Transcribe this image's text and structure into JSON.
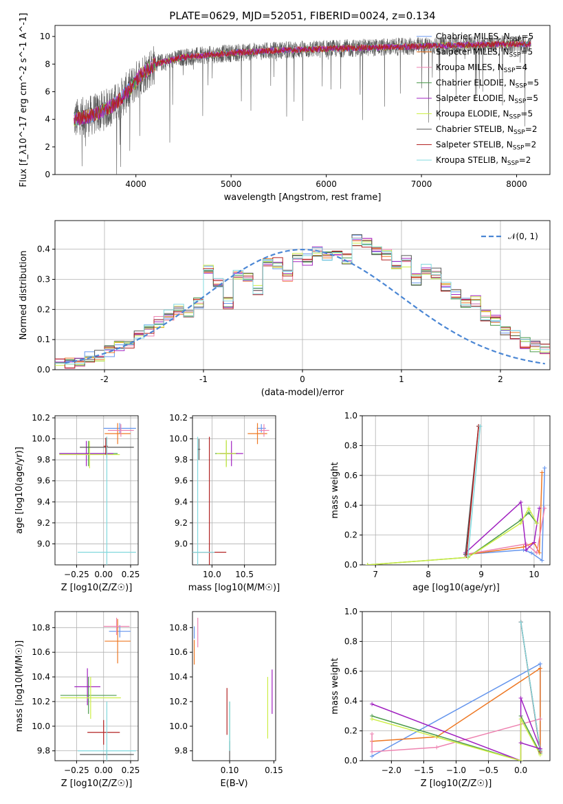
{
  "figure": {
    "title": "PLATE=0629, MJD=52051, FIBERID=0024, z=0.134"
  },
  "models": [
    {
      "name": "Chabrier MILES",
      "nssp": "5",
      "color": "#6495ed"
    },
    {
      "name": "Salpeter MILES",
      "nssp": "5",
      "color": "#ee7722"
    },
    {
      "name": "Kroupa MILES",
      "nssp": "4",
      "color": "#ee82b0"
    },
    {
      "name": "Chabrier ELODIE",
      "nssp": "5",
      "color": "#4b9a4b"
    },
    {
      "name": "Salpeter ELODIE",
      "nssp": "5",
      "color": "#a020c0"
    },
    {
      "name": "Kroupa ELODIE",
      "nssp": "5",
      "color": "#ccee44"
    },
    {
      "name": "Chabrier STELIB",
      "nssp": "2",
      "color": "#555555"
    },
    {
      "name": "Salpeter STELIB",
      "nssp": "2",
      "color": "#b22222"
    },
    {
      "name": "Kroupa STELIB",
      "nssp": "2",
      "color": "#80d8dd"
    }
  ],
  "chart_data": [
    {
      "id": "spectrum",
      "type": "line",
      "xlabel": "wavelength [Angstrom, rest frame]",
      "ylabel": "Flux [f_λ10^-17 erg cm^-2 s^-1 A^-1]",
      "xlim": [
        3150,
        8350
      ],
      "ylim": [
        0,
        10.8
      ],
      "xticks": [
        4000,
        5000,
        6000,
        7000,
        8000
      ],
      "yticks": [
        0,
        2,
        4,
        6,
        8,
        10
      ],
      "grid": false,
      "legend": "top-right",
      "continuum": [
        [
          3350,
          4.0
        ],
        [
          3500,
          4.2
        ],
        [
          3650,
          4.6
        ],
        [
          3800,
          5.2
        ],
        [
          3950,
          6.3
        ],
        [
          4050,
          7.2
        ],
        [
          4200,
          8.0
        ],
        [
          4500,
          8.5
        ],
        [
          5000,
          8.8
        ],
        [
          5500,
          9.0
        ],
        [
          6000,
          9.1
        ],
        [
          6500,
          9.2
        ],
        [
          7000,
          9.3
        ],
        [
          7500,
          9.4
        ],
        [
          8000,
          9.45
        ],
        [
          8150,
          9.45
        ]
      ],
      "data_range": [
        3350,
        8150
      ]
    },
    {
      "id": "residuals",
      "type": "histogram",
      "xlabel": "(data-model)/error",
      "ylabel": "Normed distribution",
      "xlim": [
        -2.5,
        2.5
      ],
      "ylim": [
        0,
        0.495
      ],
      "xticks": [
        -2,
        -1,
        0,
        1,
        2
      ],
      "yticks": [
        0.0,
        0.1,
        0.2,
        0.3,
        0.4
      ],
      "grid": true,
      "legend": "top-right",
      "legend_label": "𝒩(0, 1)",
      "bin_width": 0.1,
      "bins_start": -2.5,
      "values": [
        0.027,
        0.022,
        0.028,
        0.042,
        0.048,
        0.06,
        0.082,
        0.09,
        0.11,
        0.13,
        0.158,
        0.18,
        0.2,
        0.19,
        0.22,
        0.33,
        0.29,
        0.222,
        0.32,
        0.305,
        0.262,
        0.35,
        0.352,
        0.312,
        0.372,
        0.366,
        0.39,
        0.38,
        0.396,
        0.365,
        0.43,
        0.418,
        0.4,
        0.382,
        0.345,
        0.36,
        0.3,
        0.335,
        0.32,
        0.28,
        0.253,
        0.222,
        0.226,
        0.18,
        0.165,
        0.13,
        0.11,
        0.088,
        0.078,
        0.065,
        0.048,
        0.035,
        0.03
      ]
    },
    {
      "id": "age_vs_Z",
      "type": "errorbar",
      "xlabel": "Z [log10(Z/Z☉)]",
      "ylabel": "age  [log10(age/yr)]",
      "xlim": [
        -0.45,
        0.32
      ],
      "ylim": [
        8.8,
        10.22
      ],
      "xticks": [
        -0.25,
        0.0,
        0.25
      ],
      "xticklabels": [
        "−0.25",
        "0.00",
        "0.25"
      ],
      "yticks": [
        9.0,
        9.2,
        9.4,
        9.6,
        9.8,
        10.0,
        10.2
      ],
      "grid": true,
      "points": [
        {
          "model": 0,
          "x": 0.15,
          "xerr": 0.15,
          "y": 10.1,
          "yerr": 0.05
        },
        {
          "model": 1,
          "x": 0.13,
          "xerr": 0.12,
          "y": 10.05,
          "yerr": 0.1
        },
        {
          "model": 2,
          "x": 0.16,
          "xerr": 0.12,
          "y": 10.08,
          "yerr": 0.06
        },
        {
          "model": 3,
          "x": -0.14,
          "xerr": 0.27,
          "y": 9.86,
          "yerr": 0.12
        },
        {
          "model": 4,
          "x": -0.16,
          "xerr": 0.25,
          "y": 9.86,
          "yerr": 0.12
        },
        {
          "model": 5,
          "x": -0.13,
          "xerr": 0.28,
          "y": 9.85,
          "yerr": 0.13
        },
        {
          "model": 6,
          "x": 0.03,
          "xerr": 0.25,
          "y": 9.92,
          "yerr": 0.1
        },
        {
          "model": 7,
          "x": 0.02,
          "xerr": 0.02,
          "y": 9.93,
          "yerr": 0.08
        },
        {
          "model": 8,
          "x": 0.03,
          "xerr": 0.27,
          "y": 8.92,
          "yerr": 1.1
        }
      ]
    },
    {
      "id": "age_vs_mass",
      "type": "errorbar",
      "xlabel": "mass [log10(M/M☉)]",
      "ylabel": "",
      "xlim": [
        9.7,
        10.98
      ],
      "ylim": [
        8.8,
        10.22
      ],
      "xticks": [
        10.0,
        10.5
      ],
      "xticklabels": [
        "10.0",
        "10.5"
      ],
      "yticks": [
        9.0,
        9.2,
        9.4,
        9.6,
        9.8,
        10.0,
        10.2
      ],
      "grid": true,
      "points": [
        {
          "model": 0,
          "x": 10.76,
          "xerr": 0.07,
          "y": 10.1,
          "yerr": 0.04
        },
        {
          "model": 1,
          "x": 10.7,
          "xerr": 0.15,
          "y": 10.05,
          "yerr": 0.1
        },
        {
          "model": 2,
          "x": 10.8,
          "xerr": 0.08,
          "y": 10.08,
          "yerr": 0.06
        },
        {
          "model": 3,
          "x": 10.22,
          "xerr": 0.17,
          "y": 9.86,
          "yerr": 0.12
        },
        {
          "model": 4,
          "x": 10.3,
          "xerr": 0.18,
          "y": 9.86,
          "yerr": 0.12
        },
        {
          "model": 5,
          "x": 10.22,
          "xerr": 0.15,
          "y": 9.86,
          "yerr": 0.13
        },
        {
          "model": 6,
          "x": 9.8,
          "xerr": 0.02,
          "y": 9.9,
          "yerr": 0.1
        },
        {
          "model": 7,
          "x": 9.96,
          "xerr": 0.26,
          "y": 8.92,
          "yerr": 1.1
        },
        {
          "model": 8,
          "x": 9.78,
          "xerr": 0.26,
          "y": 8.92,
          "yerr": 1.1
        }
      ]
    },
    {
      "id": "weight_vs_age",
      "type": "line",
      "xlabel": "age  [log10(age/yr)]",
      "ylabel": "mass weight",
      "xlim": [
        6.75,
        10.3
      ],
      "ylim": [
        0,
        1.0
      ],
      "xticks": [
        7,
        8,
        9,
        10
      ],
      "yticks": [
        0.0,
        0.2,
        0.4,
        0.6,
        0.8,
        1.0
      ],
      "grid": true,
      "series": [
        {
          "model": 0,
          "x": [
            8.7,
            9.8,
            9.95,
            10.15,
            10.2
          ],
          "y": [
            0.07,
            0.1,
            0.08,
            0.03,
            0.65
          ]
        },
        {
          "model": 1,
          "x": [
            8.75,
            9.8,
            10.0,
            10.1,
            10.15
          ],
          "y": [
            0.07,
            0.12,
            0.15,
            0.08,
            0.62
          ]
        },
        {
          "model": 2,
          "x": [
            8.7,
            9.85,
            10.05,
            10.2
          ],
          "y": [
            0.07,
            0.14,
            0.08,
            0.38
          ]
        },
        {
          "model": 3,
          "x": [
            6.85,
            8.75,
            9.75,
            9.9,
            10.05
          ],
          "y": [
            0.0,
            0.05,
            0.3,
            0.35,
            0.28
          ]
        },
        {
          "model": 4,
          "x": [
            8.7,
            9.75,
            9.85,
            10.0,
            10.1
          ],
          "y": [
            0.08,
            0.42,
            0.1,
            0.15,
            0.38
          ]
        },
        {
          "model": 5,
          "x": [
            6.85,
            8.75,
            9.75,
            9.9,
            10.05
          ],
          "y": [
            0.0,
            0.05,
            0.28,
            0.38,
            0.28
          ]
        },
        {
          "model": 6,
          "x": [
            8.7,
            8.95
          ],
          "y": [
            0.07,
            0.93
          ]
        },
        {
          "model": 7,
          "x": [
            8.72,
            8.95
          ],
          "y": [
            0.06,
            0.93
          ]
        },
        {
          "model": 8,
          "x": [
            8.75,
            8.98
          ],
          "y": [
            0.06,
            0.93
          ]
        }
      ]
    },
    {
      "id": "mass_vs_Z",
      "type": "errorbar",
      "xlabel": "Z [log10(Z/Z☉)]",
      "ylabel": "mass [log10(M/M☉)]",
      "xlim": [
        -0.45,
        0.32
      ],
      "ylim": [
        9.72,
        10.93
      ],
      "xticks": [
        -0.25,
        0.0,
        0.25
      ],
      "xticklabels": [
        "−0.25",
        "0.00",
        "0.25"
      ],
      "yticks": [
        9.8,
        10.0,
        10.2,
        10.4,
        10.6,
        10.8
      ],
      "grid": true,
      "points": [
        {
          "model": 0,
          "x": 0.15,
          "xerr": 0.1,
          "y": 10.77,
          "yerr": 0.05
        },
        {
          "model": 1,
          "x": 0.13,
          "xerr": 0.12,
          "y": 10.69,
          "yerr": 0.18
        },
        {
          "model": 2,
          "x": 0.12,
          "xerr": 0.12,
          "y": 10.81,
          "yerr": 0.07
        },
        {
          "model": 3,
          "x": -0.14,
          "xerr": 0.26,
          "y": 10.25,
          "yerr": 0.15
        },
        {
          "model": 4,
          "x": -0.15,
          "xerr": 0.12,
          "y": 10.32,
          "yerr": 0.15
        },
        {
          "model": 5,
          "x": -0.12,
          "xerr": 0.28,
          "y": 10.23,
          "yerr": 0.17
        },
        {
          "model": 6,
          "x": 0.03,
          "xerr": 0.25,
          "y": 9.77,
          "yerr": 0.04
        },
        {
          "model": 7,
          "x": 0.0,
          "xerr": 0.15,
          "y": 9.95,
          "yerr": 0.1
        },
        {
          "model": 8,
          "x": 0.03,
          "xerr": 0.27,
          "y": 9.8,
          "yerr": 0.4
        }
      ]
    },
    {
      "id": "mass_vs_EBV",
      "type": "errorbar",
      "xlabel": "E(B-V)",
      "ylabel": "",
      "xlim": [
        0.058,
        0.152
      ],
      "ylim": [
        9.72,
        10.93
      ],
      "xticks": [
        0.05,
        0.1,
        0.15
      ],
      "xticklabels": [
        "0.05",
        "0.10",
        "0.15"
      ],
      "yticks": [
        9.8,
        10.0,
        10.2,
        10.4,
        10.6,
        10.8
      ],
      "grid": false,
      "points": [
        {
          "model": 0,
          "x": 0.06,
          "y": 10.76,
          "yerr": 0.05
        },
        {
          "model": 1,
          "x": 0.06,
          "y": 10.6,
          "yerr": 0.1
        },
        {
          "model": 2,
          "x": 0.064,
          "y": 10.76,
          "yerr": 0.12
        },
        {
          "model": 3,
          "x": 0.1,
          "y": 10.0,
          "yerr": 0.2
        },
        {
          "model": 4,
          "x": 0.148,
          "y": 10.28,
          "yerr": 0.18
        },
        {
          "model": 5,
          "x": 0.143,
          "y": 10.15,
          "yerr": 0.25
        },
        {
          "model": 6,
          "x": 0.1,
          "y": 9.78,
          "yerr": 0.1
        },
        {
          "model": 7,
          "x": 0.097,
          "y": 10.12,
          "yerr": 0.19
        },
        {
          "model": 8,
          "x": 0.1,
          "y": 10.0,
          "yerr": 0.2
        }
      ]
    },
    {
      "id": "weight_vs_Z",
      "type": "line",
      "xlabel": "Z [log10(Z/Z☉)]",
      "ylabel": "mass weight",
      "xlim": [
        -2.45,
        0.45
      ],
      "ylim": [
        0,
        1.0
      ],
      "xticks": [
        -2.0,
        -1.5,
        -1.0,
        -0.5,
        0.0
      ],
      "xticklabels": [
        "−2.0",
        "−1.5",
        "−1.0",
        "−0.5",
        "0.0"
      ],
      "yticks": [
        0.0,
        0.2,
        0.4,
        0.6,
        0.8,
        1.0
      ],
      "grid": true,
      "series": [
        {
          "model": 0,
          "x": [
            -2.3,
            0.3,
            0.3
          ],
          "y": [
            0.03,
            0.65,
            0.06
          ]
        },
        {
          "model": 1,
          "x": [
            -2.3,
            -1.3,
            0.3,
            0.3
          ],
          "y": [
            0.13,
            0.16,
            0.62,
            0.06
          ]
        },
        {
          "model": 2,
          "x": [
            -2.3,
            -2.3,
            -1.3,
            0.3
          ],
          "y": [
            0.18,
            0.06,
            0.09,
            0.28
          ]
        },
        {
          "model": 3,
          "x": [
            -2.3,
            0.0,
            0.0,
            0.3
          ],
          "y": [
            0.3,
            0.0,
            0.3,
            0.05
          ]
        },
        {
          "model": 4,
          "x": [
            -2.3,
            0.0,
            0.0,
            0.3
          ],
          "y": [
            0.38,
            0.0,
            0.42,
            0.08
          ]
        },
        {
          "model": 5,
          "x": [
            -2.3,
            0.0,
            0.0,
            0.3
          ],
          "y": [
            0.28,
            0.0,
            0.28,
            0.04
          ]
        },
        {
          "model": 6,
          "x": [
            0.0,
            0.3
          ],
          "y": [
            0.93,
            0.07
          ]
        },
        {
          "model": 7,
          "x": [
            0.0,
            0.3
          ],
          "y": [
            0.93,
            0.06
          ]
        },
        {
          "model": 8,
          "x": [
            0.0,
            0.3
          ],
          "y": [
            0.93,
            0.07
          ]
        }
      ],
      "extra": [
        {
          "model": 4,
          "x": [
            0.0,
            0.3
          ],
          "y": [
            0.12,
            0.08
          ]
        }
      ]
    }
  ]
}
